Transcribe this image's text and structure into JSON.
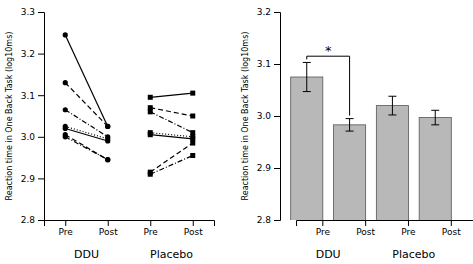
{
  "chart_data": [
    {
      "type": "line",
      "categories": [
        "Pre",
        "Post",
        "Pre",
        "Post"
      ],
      "groups": [
        "DDU",
        "Placebo"
      ],
      "ylabel": "Reaction time in One Back Task (log10ms)",
      "ylim": [
        2.8,
        3.3
      ],
      "yticks": [
        2.8,
        2.9,
        {
          "value": 3.0,
          "label": "3.0"
        },
        3.1,
        3.2,
        3.3
      ],
      "series": [
        {
          "color": "#000000",
          "marker": "circle",
          "line_style": "solid",
          "values": [
            3.245,
            3.025,
            null,
            null
          ]
        },
        {
          "color": "#000000",
          "marker": "circle",
          "line_style": "dashed",
          "values": [
            3.13,
            3.025,
            null,
            null
          ]
        },
        {
          "color": "#000000",
          "marker": "circle",
          "line_style": "dashdot",
          "values": [
            3.065,
            3.0,
            null,
            null
          ]
        },
        {
          "color": "#000000",
          "marker": "circle",
          "line_style": "dotted",
          "values": [
            3.025,
            2.995,
            null,
            null
          ]
        },
        {
          "color": "#000000",
          "marker": "circle",
          "line_style": "solid",
          "values": [
            3.02,
            2.99,
            null,
            null
          ]
        },
        {
          "color": "#000000",
          "marker": "circle",
          "line_style": "dashed",
          "values": [
            3.005,
            2.945,
            null,
            null
          ]
        },
        {
          "color": "#000000",
          "marker": "circle",
          "line_style": "dashdot",
          "values": [
            3.0,
            2.945,
            null,
            null
          ]
        },
        {
          "color": "#000000",
          "marker": "square",
          "line_style": "solid",
          "values": [
            null,
            null,
            3.095,
            3.105
          ]
        },
        {
          "color": "#000000",
          "marker": "square",
          "line_style": "dashed",
          "values": [
            null,
            null,
            3.07,
            3.05
          ]
        },
        {
          "color": "#000000",
          "marker": "square",
          "line_style": "dashdot",
          "values": [
            null,
            null,
            3.06,
            3.01
          ]
        },
        {
          "color": "#000000",
          "marker": "square",
          "line_style": "dotted",
          "values": [
            null,
            null,
            3.01,
            3.0
          ]
        },
        {
          "color": "#000000",
          "marker": "square",
          "line_style": "solid",
          "values": [
            null,
            null,
            3.005,
            2.995
          ]
        },
        {
          "color": "#000000",
          "marker": "square",
          "line_style": "dashed",
          "values": [
            null,
            null,
            2.915,
            2.985
          ]
        },
        {
          "color": "#000000",
          "marker": "square",
          "line_style": "dashdot",
          "values": [
            null,
            null,
            2.91,
            2.955
          ]
        }
      ]
    },
    {
      "type": "bar",
      "categories": [
        "Pre",
        "Post",
        "Pre",
        "Post"
      ],
      "groups": [
        "DDU",
        "Placebo"
      ],
      "values": [
        3.075,
        2.983,
        3.02,
        2.997
      ],
      "errors": [
        0.028,
        0.012,
        0.018,
        0.014
      ],
      "color": "#b8b8b8",
      "ylabel": "Reaction time in One Back Task (log10ms)",
      "ylim": [
        2.8,
        3.2
      ],
      "yticks": [
        2.8,
        2.9,
        {
          "value": 3.0,
          "label": "3.0"
        },
        3.1,
        3.2
      ],
      "annotations": [
        {
          "text": "*",
          "y": 3.115,
          "between": [
            0,
            1
          ]
        }
      ]
    }
  ]
}
